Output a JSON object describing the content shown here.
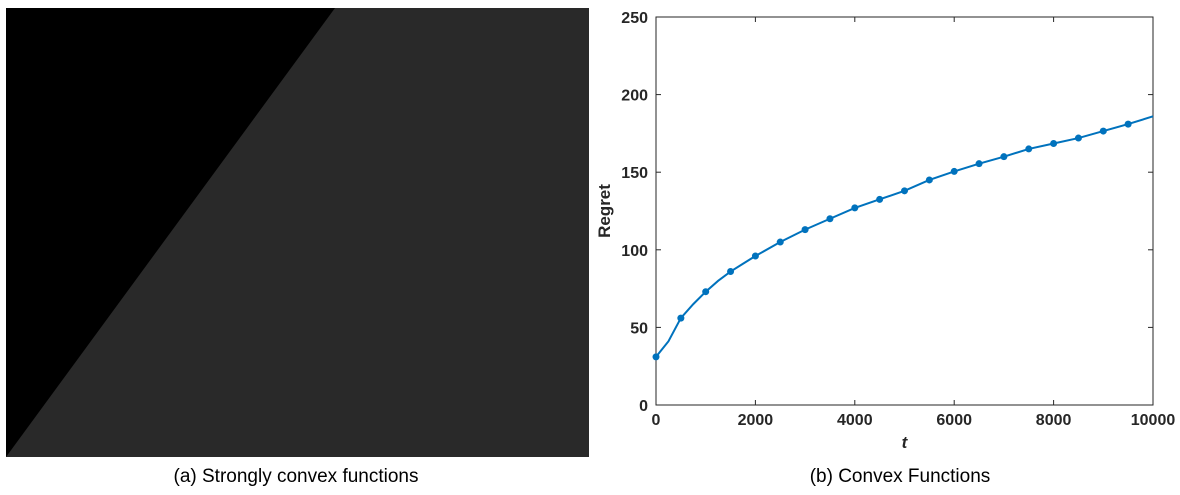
{
  "captions": {
    "a": "(a) Strongly convex functions",
    "b": "(b) Convex Functions"
  },
  "panel_a": {
    "content": "dark image panel",
    "colors": {
      "background": "#292929",
      "upper_left_region": "#000000"
    }
  },
  "chart_data": [
    {
      "type": "line",
      "xlabel": "t",
      "ylabel": "Regret",
      "xlim": [
        0,
        10000
      ],
      "ylim": [
        0,
        250
      ],
      "xticks": [
        0,
        2000,
        4000,
        6000,
        8000,
        10000
      ],
      "yticks": [
        0,
        50,
        100,
        150,
        200,
        250
      ],
      "grid": false,
      "legend": "none",
      "color": "#0072BD",
      "series": [
        {
          "line": [
            [
              0,
              31
            ],
            [
              100,
              35
            ],
            [
              250,
              41
            ],
            [
              500,
              56
            ],
            [
              750,
              65
            ],
            [
              1000,
              73
            ],
            [
              1250,
              80
            ],
            [
              1500,
              86
            ],
            [
              1750,
              91
            ],
            [
              2000,
              96
            ],
            [
              2500,
              105
            ],
            [
              3000,
              113
            ],
            [
              3500,
              120
            ],
            [
              4000,
              127
            ],
            [
              4500,
              132.5
            ],
            [
              5000,
              138
            ],
            [
              5500,
              145
            ],
            [
              6000,
              150.5
            ],
            [
              6500,
              155.5
            ],
            [
              7000,
              160
            ],
            [
              7500,
              165
            ],
            [
              8000,
              168.5
            ],
            [
              8500,
              172
            ],
            [
              9000,
              176.5
            ],
            [
              9500,
              181
            ],
            [
              10000,
              186
            ]
          ],
          "markers": [
            [
              0,
              31
            ],
            [
              500,
              56
            ],
            [
              1000,
              73
            ],
            [
              1500,
              86
            ],
            [
              2000,
              96
            ],
            [
              2500,
              105
            ],
            [
              3000,
              113
            ],
            [
              3500,
              120
            ],
            [
              4000,
              127
            ],
            [
              4500,
              132.5
            ],
            [
              5000,
              138
            ],
            [
              5500,
              145
            ],
            [
              6000,
              150.5
            ],
            [
              6500,
              155.5
            ],
            [
              7000,
              160
            ],
            [
              7500,
              165
            ],
            [
              8000,
              168.5
            ],
            [
              8500,
              172
            ],
            [
              9000,
              176.5
            ],
            [
              9500,
              181
            ]
          ]
        }
      ]
    }
  ]
}
